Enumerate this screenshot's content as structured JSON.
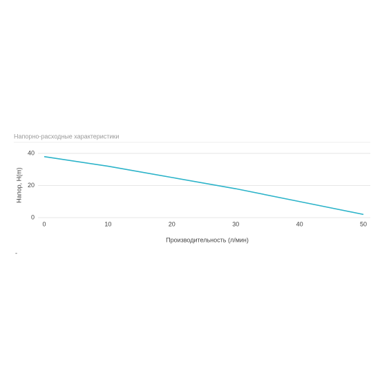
{
  "chart_data": {
    "type": "line",
    "title": "Напорно-расходные характеристики",
    "x_label": "Производительность (л/мин)",
    "y_label": "Напор, H(m)",
    "note": "-",
    "x": [
      0,
      10,
      20,
      30,
      40,
      50
    ],
    "series": [
      {
        "name": "Напор",
        "color": "#2bb3c9",
        "values": [
          38,
          32,
          25,
          18,
          10,
          2
        ]
      }
    ],
    "xlim": [
      0,
      50
    ],
    "xticks": [
      0,
      10,
      20,
      30,
      40,
      50
    ],
    "ylim": [
      0,
      40
    ],
    "yticks": [
      0,
      20,
      40
    ],
    "grid": true
  }
}
